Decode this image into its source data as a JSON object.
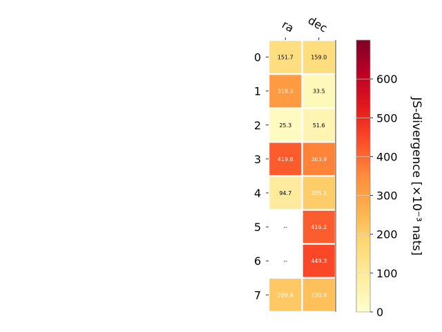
{
  "chart_data": {
    "type": "heatmap",
    "columns": [
      "ra",
      "dec"
    ],
    "rows": [
      "0",
      "1",
      "2",
      "3",
      "4",
      "5",
      "6",
      "7"
    ],
    "values": [
      [
        151.7,
        159.0
      ],
      [
        318.3,
        33.5
      ],
      [
        25.3,
        51.6
      ],
      [
        419.8,
        363.9
      ],
      [
        94.7,
        205.1
      ],
      [
        null,
        416.2
      ],
      [
        null,
        449.3
      ],
      [
        209.8,
        230.8
      ]
    ],
    "cell_labels": [
      [
        "151.7",
        "159.0"
      ],
      [
        "318.3",
        "33.5"
      ],
      [
        "25.3",
        "51.6"
      ],
      [
        "419.8",
        "363.9"
      ],
      [
        "94.7",
        "205.1"
      ],
      [
        "--",
        "416.2"
      ],
      [
        "--",
        "449.3"
      ],
      [
        "209.8",
        "230.8"
      ]
    ],
    "colorbar": {
      "label": "JS-divergence [×10⁻³ nats]",
      "range": [
        0,
        700
      ],
      "ticks": [
        0,
        100,
        200,
        300,
        400,
        500,
        600
      ],
      "tick_labels": [
        "0",
        "100",
        "200",
        "300",
        "400",
        "500",
        "600"
      ],
      "colormap": "YlOrRd"
    },
    "grid": false,
    "missing_color": "#ffffff"
  }
}
